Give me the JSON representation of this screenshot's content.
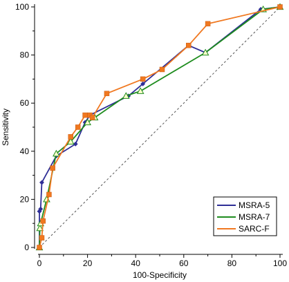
{
  "chart_data": {
    "type": "line",
    "xlabel": "100-Specificity",
    "ylabel": "Sensitivity",
    "xlim": [
      0,
      100
    ],
    "ylim": [
      0,
      100
    ],
    "xticks": [
      "0",
      "20",
      "40",
      "60",
      "80",
      "100"
    ],
    "yticks": [
      "0",
      "20",
      "40",
      "60",
      "80",
      "100"
    ],
    "reference_line": "diagonal",
    "legend_position": "bottom-right",
    "series": [
      {
        "name": "MSRA-5",
        "color": "#2e2e96",
        "marker": "diamond",
        "x": [
          0,
          0,
          0.5,
          1,
          7,
          15,
          19,
          21,
          37,
          43,
          62,
          69,
          92,
          100
        ],
        "y": [
          0,
          15,
          16,
          27,
          38,
          43,
          52,
          55,
          63,
          68,
          84,
          81,
          99,
          100
        ]
      },
      {
        "name": "MSRA-7",
        "color": "#1e8c1e",
        "marker": "triangle",
        "x": [
          0,
          0.2,
          0.5,
          3,
          7,
          13,
          20,
          23,
          36,
          42,
          69,
          93,
          100
        ],
        "y": [
          0,
          8,
          10,
          20,
          39,
          44,
          52,
          54,
          63,
          65,
          81,
          99,
          100
        ]
      },
      {
        "name": "SARC-F",
        "color": "#f07820",
        "marker": "square",
        "x": [
          0,
          1,
          1.5,
          4,
          5.5,
          13,
          16,
          19,
          21,
          22,
          28,
          43,
          51,
          62,
          70,
          100
        ],
        "y": [
          0,
          4,
          11,
          22,
          33,
          46,
          50,
          55,
          55,
          54,
          64,
          70,
          74,
          84,
          93,
          100
        ]
      }
    ]
  }
}
